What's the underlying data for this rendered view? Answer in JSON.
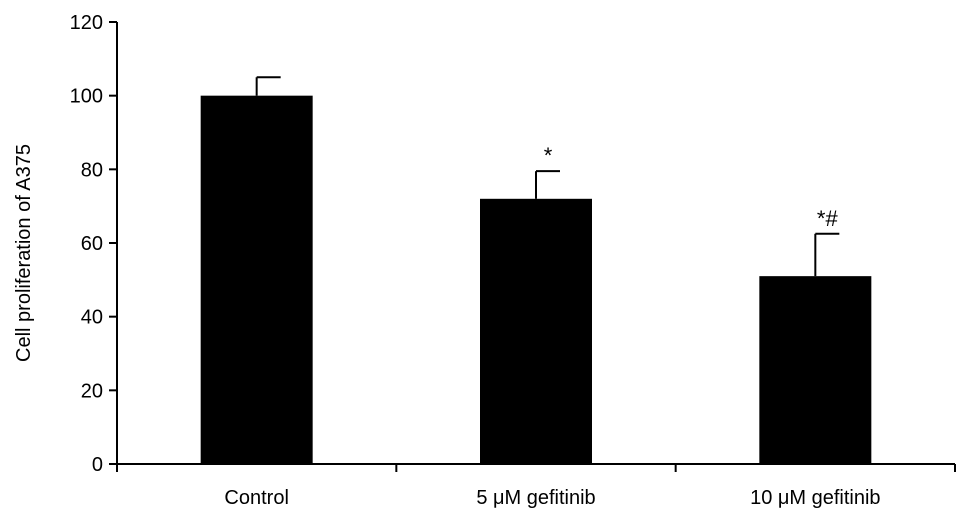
{
  "chart_data": {
    "type": "bar",
    "categories": [
      "Control",
      "5 μM gefitinib",
      "10 μM gefitinib"
    ],
    "values": [
      100,
      72,
      51
    ],
    "error_upper": [
      105,
      79.5,
      62.5
    ],
    "annotations": [
      "",
      "*",
      "*#"
    ],
    "title": "",
    "xlabel": "",
    "ylabel": "Cell proliferation of A375",
    "ylim": [
      0,
      120
    ],
    "yticks": [
      0,
      20,
      40,
      60,
      80,
      100,
      120
    ],
    "grid": false,
    "legend": "none",
    "bar_color": "#000000"
  }
}
